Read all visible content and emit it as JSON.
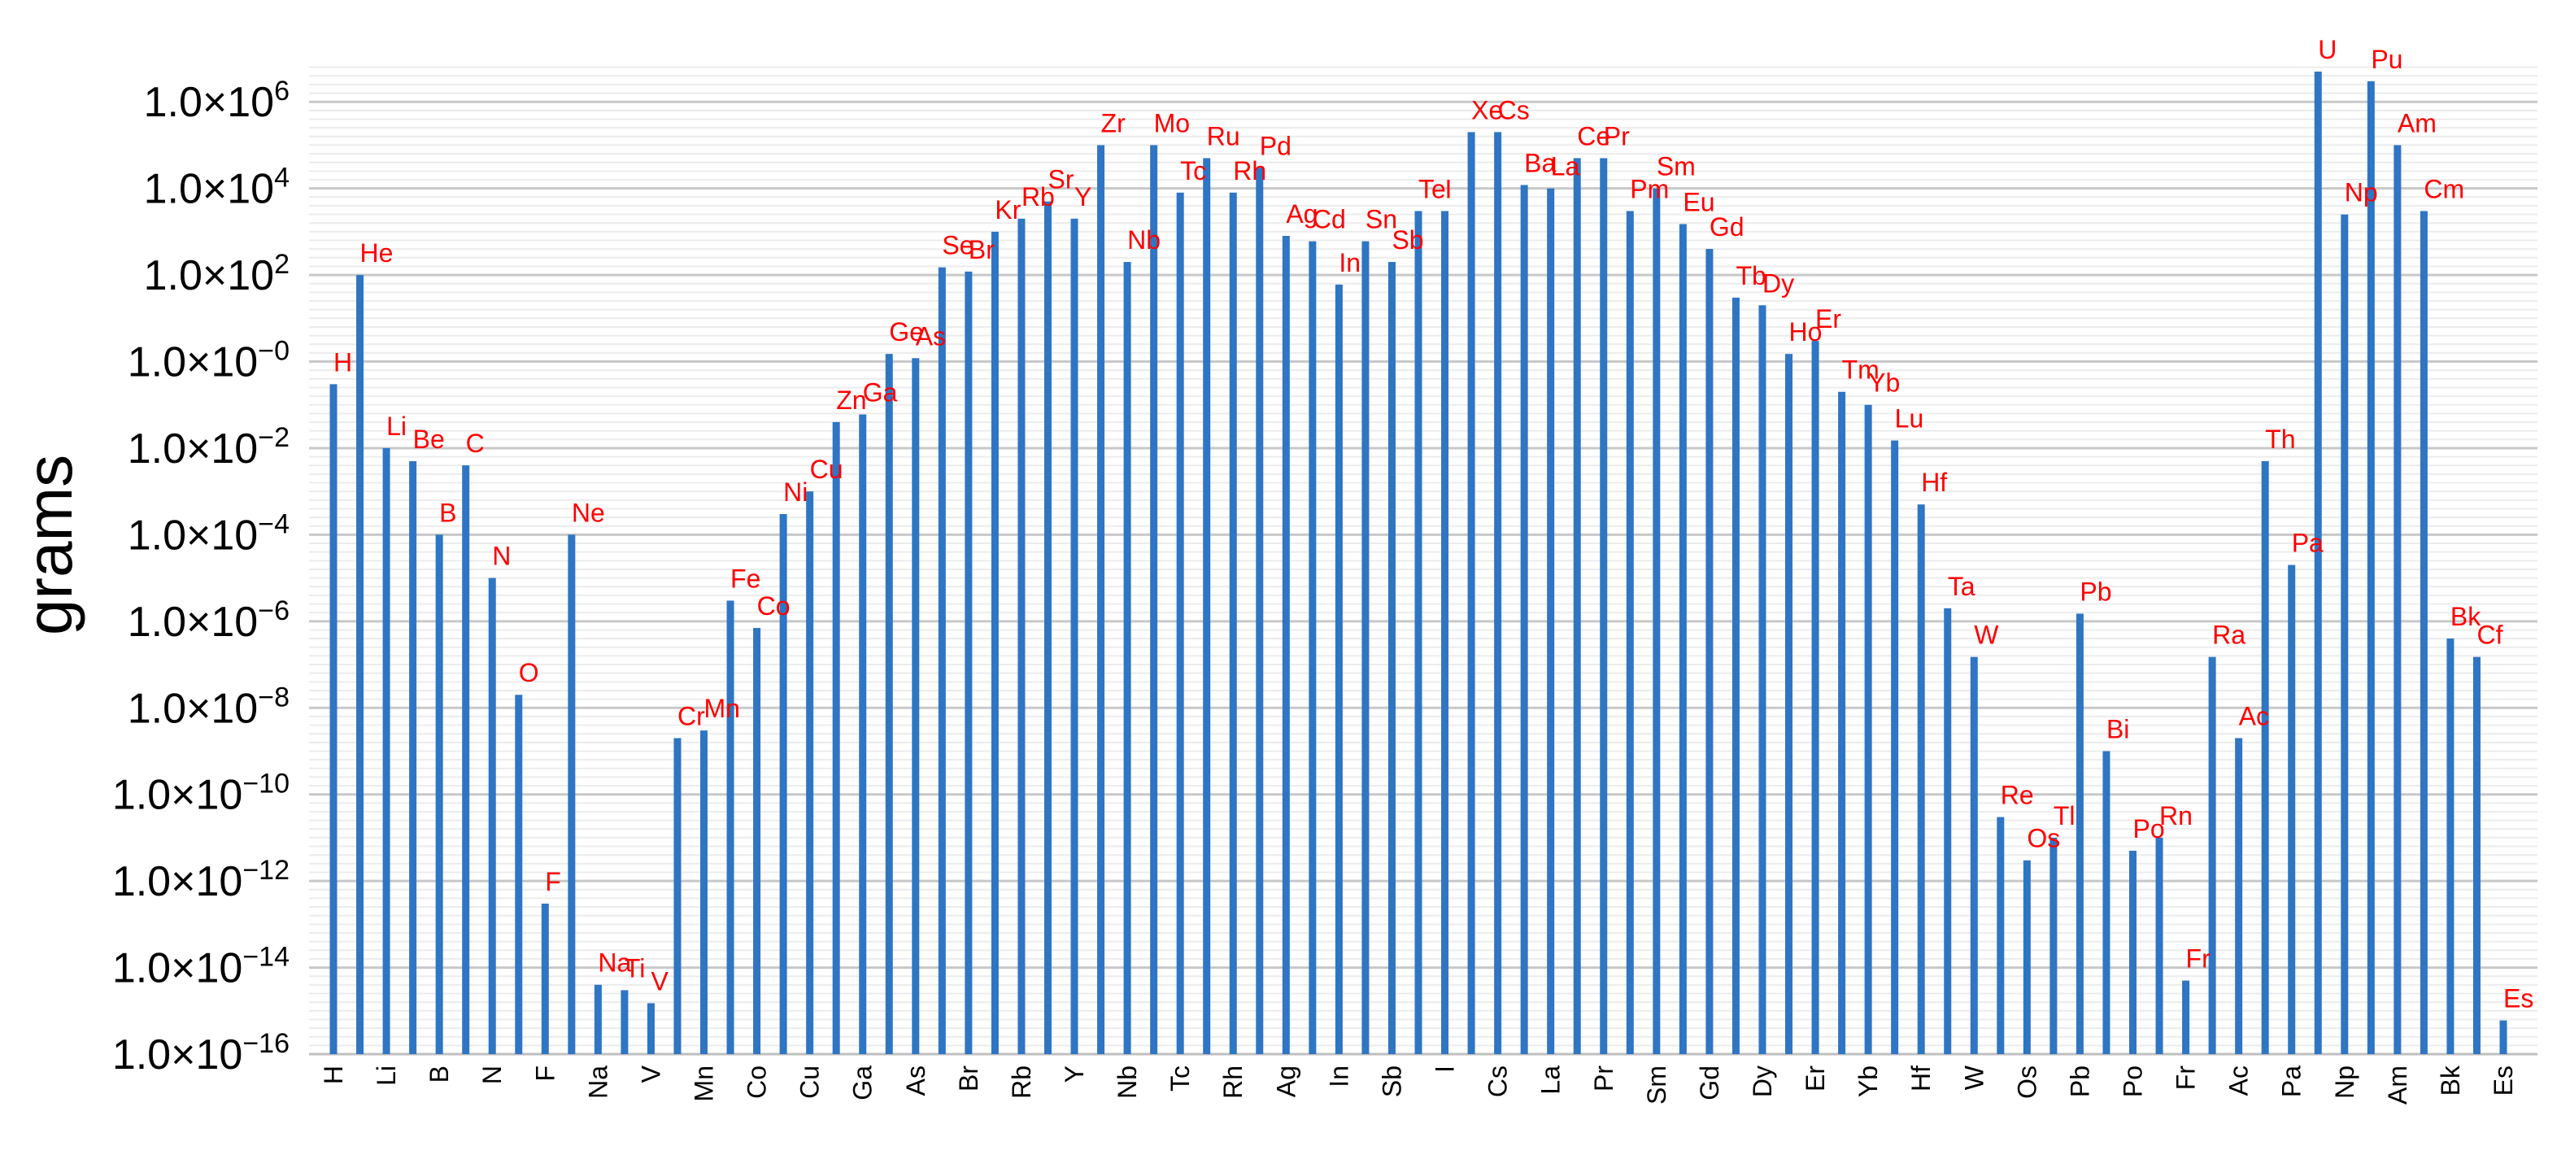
{
  "chart_data": {
    "type": "bar",
    "title": "",
    "xlabel": "",
    "ylabel": "grams",
    "yscale": "log",
    "ylim": [
      1e-16,
      10000000.0
    ],
    "yticks": [
      {
        "value": 1e-16,
        "mantissa": "1.0×10",
        "exponent": "−16"
      },
      {
        "value": 1e-14,
        "mantissa": "1.0×10",
        "exponent": "−14"
      },
      {
        "value": 1e-12,
        "mantissa": "1.0×10",
        "exponent": "−12"
      },
      {
        "value": 1e-10,
        "mantissa": "1.0×10",
        "exponent": "−10"
      },
      {
        "value": 1e-08,
        "mantissa": "1.0×10",
        "exponent": "−8"
      },
      {
        "value": 1e-06,
        "mantissa": "1.0×10",
        "exponent": "−6"
      },
      {
        "value": 0.0001,
        "mantissa": "1.0×10",
        "exponent": "−4"
      },
      {
        "value": 0.01,
        "mantissa": "1.0×10",
        "exponent": "−2"
      },
      {
        "value": 1,
        "mantissa": "1.0×10",
        "exponent": "−0"
      },
      {
        "value": 100.0,
        "mantissa": "1.0×10",
        "exponent": "2"
      },
      {
        "value": 10000.0,
        "mantissa": "1.0×10",
        "exponent": "4"
      },
      {
        "value": 1000000.0,
        "mantissa": "1.0×10",
        "exponent": "6"
      }
    ],
    "grid": true,
    "bar_color": "#2e75c4",
    "label_color": "#ff0000",
    "grid_color": "#d9d9d9",
    "categories": [
      "H",
      "He",
      "Li",
      "Be",
      "B",
      "C",
      "N",
      "O",
      "F",
      "Ne",
      "Na",
      "Ti",
      "V",
      "Cr",
      "Mn",
      "Fe",
      "Co",
      "Ni",
      "Cu",
      "Zn",
      "Ga",
      "Ge",
      "As",
      "Se",
      "Br",
      "Kr",
      "Rb",
      "Sr",
      "Y",
      "Zr",
      "Nb",
      "Mo",
      "Tc",
      "Ru",
      "Rh",
      "Pd",
      "Ag",
      "Cd",
      "In",
      "Sn",
      "Sb",
      "Te",
      "I",
      "Xe",
      "Cs",
      "Ba",
      "La",
      "Ce",
      "Pr",
      "Pm",
      "Sm",
      "Eu",
      "Gd",
      "Tb",
      "Dy",
      "Ho",
      "Er",
      "Tm",
      "Yb",
      "Lu",
      "Hf",
      "Ta",
      "W",
      "Re",
      "Os",
      "Tl",
      "Pb",
      "Bi",
      "Po",
      "Rn",
      "Fr",
      "Ra",
      "Ac",
      "Th",
      "Pa",
      "U",
      "Np",
      "Pu",
      "Am",
      "Cm",
      "Bk",
      "Cf",
      "Es"
    ],
    "xtick_labels": [
      "H",
      "Li",
      "B",
      "N",
      "F",
      "Na",
      "V",
      "Mn",
      "Co",
      "Cu",
      "Ga",
      "As",
      "Br",
      "Rb",
      "Y",
      "Nb",
      "Tc",
      "Rh",
      "Ag",
      "In",
      "Sb",
      "I",
      "Cs",
      "La",
      "Pr",
      "Sm",
      "Gd",
      "Dy",
      "Er",
      "Yb",
      "Hf",
      "W",
      "Os",
      "Pb",
      "Po",
      "Fr",
      "Ac",
      "Pa",
      "Np",
      "Am",
      "Bk",
      "Es"
    ],
    "values": [
      0.3,
      100,
      0.01,
      0.005,
      0.0001,
      0.004,
      1e-05,
      2e-08,
      3e-13,
      0.0001,
      4e-15,
      3e-15,
      1.5e-15,
      2e-09,
      3e-09,
      3e-06,
      7e-07,
      0.0003,
      0.001,
      0.04,
      0.06,
      1.5,
      1.2,
      150,
      120,
      1000,
      2000,
      5000,
      2000,
      100000.0,
      200,
      100000.0,
      8000,
      50000.0,
      8000,
      30000.0,
      800,
      600,
      60,
      600,
      200,
      3000,
      3000,
      200000.0,
      200000.0,
      12000.0,
      10000.0,
      50000.0,
      50000.0,
      3000,
      10000.0,
      1500,
      400,
      30,
      20,
      1.5,
      3,
      0.2,
      0.1,
      0.015,
      0.0005,
      2e-06,
      1.5e-07,
      3e-11,
      3e-12,
      1e-11,
      1.5e-06,
      1e-09,
      5e-12,
      1e-11,
      5e-15,
      1.5e-07,
      2e-09,
      0.005,
      2e-05,
      5000000.0,
      2500,
      3000000.0,
      100000.0,
      3000,
      4e-07,
      1.5e-07,
      6e-16
    ]
  }
}
